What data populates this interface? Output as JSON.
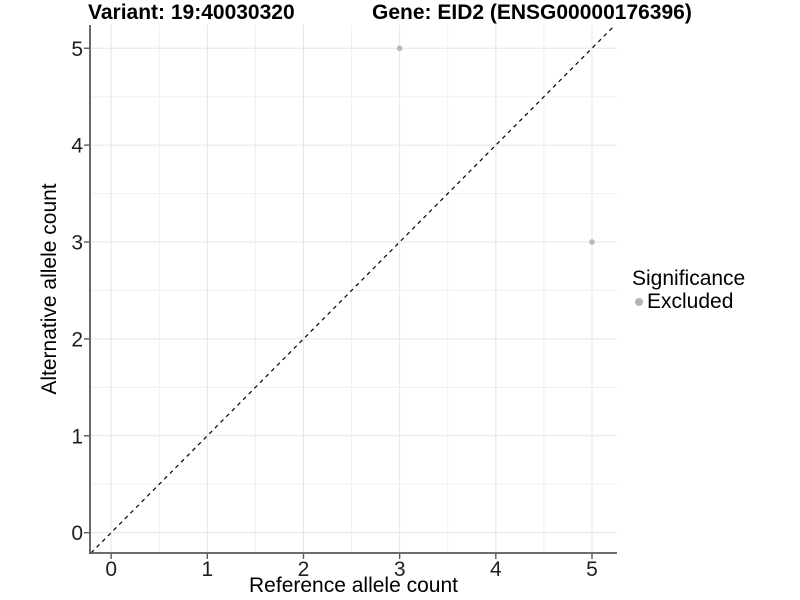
{
  "colors": {
    "background": "#ffffff",
    "grid_major": "#e5e5e5",
    "grid_minor": "#f0f0f0",
    "axis_line": "#595959",
    "tick_mark": "#595959",
    "tick_text": "#1f1f1f",
    "title_text": "#000000",
    "point": "#b9b9b9",
    "identity_line": "#000000"
  },
  "chart_data": {
    "type": "scatter",
    "title_left": "Variant: 19:40030320",
    "title_right": "Gene: EID2 (ENSG00000176396)",
    "xlabel": "Reference allele count",
    "ylabel": "Alternative allele count",
    "x_ticks": [
      0,
      1,
      2,
      3,
      4,
      5
    ],
    "y_ticks": [
      0,
      1,
      2,
      3,
      4,
      5
    ],
    "xlim": [
      -0.22,
      5.26
    ],
    "ylim": [
      -0.21,
      5.24
    ],
    "minor_step": 0.5,
    "grid": "major+minor",
    "identity_line": {
      "equation": "y = x",
      "style": "dashed",
      "color": "#000000"
    },
    "series": [
      {
        "name": "Excluded",
        "color": "#b9b9b9",
        "points": [
          [
            3,
            5
          ],
          [
            5,
            3
          ]
        ]
      }
    ],
    "legend": {
      "title": "Significance",
      "position": "right",
      "items": [
        {
          "label": "Excluded",
          "color": "#b3b3b3"
        }
      ]
    }
  }
}
